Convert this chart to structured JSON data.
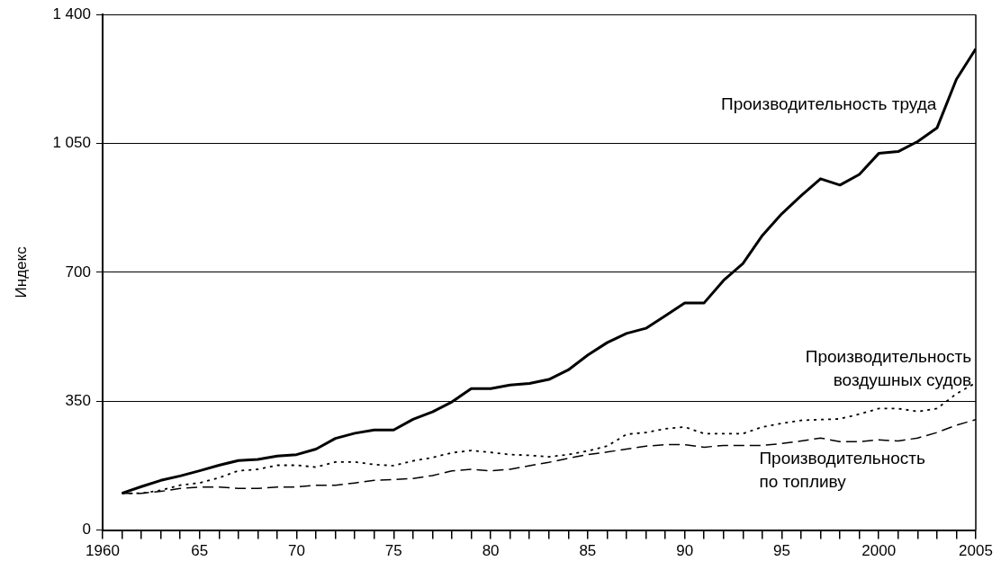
{
  "chart_data": {
    "type": "line",
    "ylabel": "Индекс",
    "grid": "y",
    "legend": false,
    "marker": "none",
    "x": [
      1961,
      1962,
      1963,
      1964,
      1965,
      1966,
      1967,
      1968,
      1969,
      1970,
      1971,
      1972,
      1973,
      1974,
      1975,
      1976,
      1977,
      1978,
      1979,
      1980,
      1981,
      1982,
      1983,
      1984,
      1985,
      1986,
      1987,
      1988,
      1989,
      1990,
      1991,
      1992,
      1993,
      1994,
      1995,
      1996,
      1997,
      1998,
      1999,
      2000,
      2001,
      2002,
      2003,
      2004,
      2005
    ],
    "series": [
      {
        "name": "Производительность труда",
        "color": "#000000",
        "line_style": "solid",
        "values": [
          100,
          118,
          135,
          147,
          161,
          176,
          189,
          192,
          201,
          205,
          220,
          249,
          263,
          272,
          272,
          301,
          321,
          348,
          384,
          384,
          394,
          398,
          409,
          435,
          475,
          509,
          534,
          548,
          582,
          617,
          617,
          678,
          724,
          800,
          859,
          908,
          954,
          937,
          966,
          1023,
          1028,
          1055,
          1092,
          1224,
          1307
        ]
      },
      {
        "name": "Производительность воздушных судов",
        "color": "#000000",
        "line_style": "dotted",
        "values": [
          100,
          100,
          108,
          122,
          128,
          142,
          161,
          165,
          176,
          176,
          171,
          185,
          185,
          178,
          175,
          188,
          197,
          210,
          216,
          211,
          205,
          203,
          199,
          205,
          215,
          228,
          260,
          265,
          275,
          280,
          262,
          262,
          262,
          280,
          290,
          298,
          300,
          302,
          315,
          330,
          330,
          322,
          330,
          370,
          400
        ]
      },
      {
        "name": "Производительность по топливу",
        "color": "#000000",
        "line_style": "dashed",
        "values": [
          100,
          100,
          105,
          113,
          117,
          117,
          113,
          113,
          117,
          117,
          122,
          122,
          128,
          135,
          137,
          140,
          148,
          161,
          165,
          161,
          165,
          175,
          184,
          195,
          205,
          212,
          220,
          228,
          232,
          232,
          225,
          230,
          230,
          230,
          235,
          242,
          250,
          240,
          240,
          245,
          242,
          250,
          265,
          285,
          300
        ]
      }
    ],
    "xlim": [
      1960,
      2005
    ],
    "xticks": [
      {
        "value": 1960,
        "label": "1960"
      },
      {
        "value": 1961,
        "label": null
      },
      {
        "value": 1962,
        "label": null
      },
      {
        "value": 1963,
        "label": null
      },
      {
        "value": 1964,
        "label": null
      },
      {
        "value": 1965,
        "label": "65"
      },
      {
        "value": 1966,
        "label": null
      },
      {
        "value": 1967,
        "label": null
      },
      {
        "value": 1968,
        "label": null
      },
      {
        "value": 1969,
        "label": null
      },
      {
        "value": 1970,
        "label": "70"
      },
      {
        "value": 1971,
        "label": null
      },
      {
        "value": 1972,
        "label": null
      },
      {
        "value": 1973,
        "label": null
      },
      {
        "value": 1974,
        "label": null
      },
      {
        "value": 1975,
        "label": "75"
      },
      {
        "value": 1976,
        "label": null
      },
      {
        "value": 1977,
        "label": null
      },
      {
        "value": 1978,
        "label": null
      },
      {
        "value": 1979,
        "label": null
      },
      {
        "value": 1980,
        "label": "80"
      },
      {
        "value": 1981,
        "label": null
      },
      {
        "value": 1982,
        "label": null
      },
      {
        "value": 1983,
        "label": null
      },
      {
        "value": 1984,
        "label": null
      },
      {
        "value": 1985,
        "label": "85"
      },
      {
        "value": 1986,
        "label": null
      },
      {
        "value": 1987,
        "label": null
      },
      {
        "value": 1988,
        "label": null
      },
      {
        "value": 1989,
        "label": null
      },
      {
        "value": 1990,
        "label": "90"
      },
      {
        "value": 1991,
        "label": null
      },
      {
        "value": 1992,
        "label": null
      },
      {
        "value": 1993,
        "label": null
      },
      {
        "value": 1994,
        "label": null
      },
      {
        "value": 1995,
        "label": "95"
      },
      {
        "value": 1996,
        "label": null
      },
      {
        "value": 1997,
        "label": null
      },
      {
        "value": 1998,
        "label": null
      },
      {
        "value": 1999,
        "label": null
      },
      {
        "value": 2000,
        "label": "2000"
      },
      {
        "value": 2001,
        "label": null
      },
      {
        "value": 2002,
        "label": null
      },
      {
        "value": 2003,
        "label": null
      },
      {
        "value": 2004,
        "label": null
      },
      {
        "value": 2005,
        "label": "2005"
      }
    ],
    "ylim": [
      0,
      1400
    ],
    "yticks": [
      0,
      350,
      700,
      {
        "value": 1050,
        "label": "1 050"
      },
      {
        "value": 1400,
        "label": "1 400"
      }
    ]
  }
}
